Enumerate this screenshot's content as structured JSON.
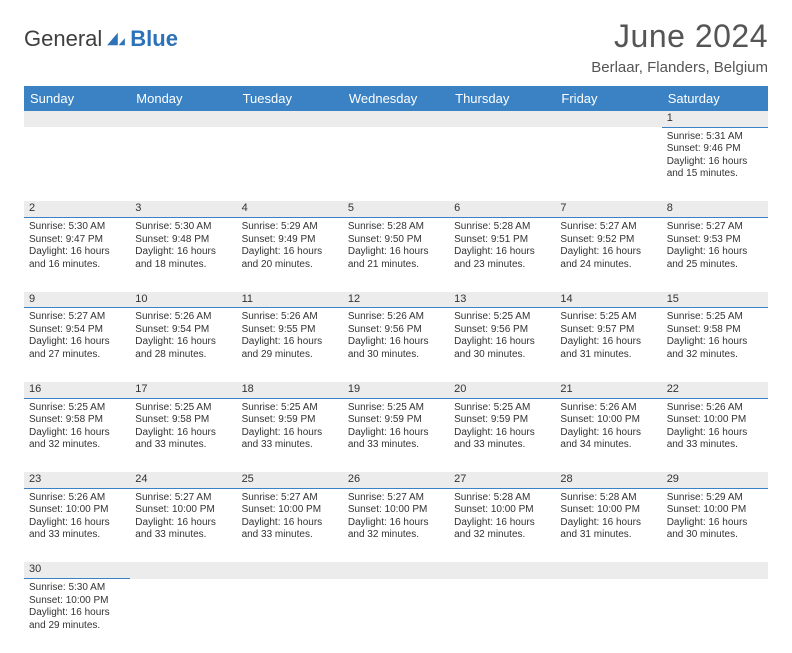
{
  "brand": {
    "part1": "General",
    "part2": "Blue",
    "logo_color": "#2d72b8",
    "text_color": "#3f3f3f"
  },
  "title": {
    "month_year": "June 2024",
    "location": "Berlaar, Flanders, Belgium"
  },
  "colors": {
    "header_bg": "#3a82c4",
    "header_fg": "#ffffff",
    "daynum_bg": "#ececec",
    "rule": "#3a82c4"
  },
  "weekdays": [
    "Sunday",
    "Monday",
    "Tuesday",
    "Wednesday",
    "Thursday",
    "Friday",
    "Saturday"
  ],
  "weeks": [
    [
      null,
      null,
      null,
      null,
      null,
      null,
      {
        "n": "1",
        "sr": "5:31 AM",
        "ss": "9:46 PM",
        "dl": "16 hours and 15 minutes."
      }
    ],
    [
      {
        "n": "2",
        "sr": "5:30 AM",
        "ss": "9:47 PM",
        "dl": "16 hours and 16 minutes."
      },
      {
        "n": "3",
        "sr": "5:30 AM",
        "ss": "9:48 PM",
        "dl": "16 hours and 18 minutes."
      },
      {
        "n": "4",
        "sr": "5:29 AM",
        "ss": "9:49 PM",
        "dl": "16 hours and 20 minutes."
      },
      {
        "n": "5",
        "sr": "5:28 AM",
        "ss": "9:50 PM",
        "dl": "16 hours and 21 minutes."
      },
      {
        "n": "6",
        "sr": "5:28 AM",
        "ss": "9:51 PM",
        "dl": "16 hours and 23 minutes."
      },
      {
        "n": "7",
        "sr": "5:27 AM",
        "ss": "9:52 PM",
        "dl": "16 hours and 24 minutes."
      },
      {
        "n": "8",
        "sr": "5:27 AM",
        "ss": "9:53 PM",
        "dl": "16 hours and 25 minutes."
      }
    ],
    [
      {
        "n": "9",
        "sr": "5:27 AM",
        "ss": "9:54 PM",
        "dl": "16 hours and 27 minutes."
      },
      {
        "n": "10",
        "sr": "5:26 AM",
        "ss": "9:54 PM",
        "dl": "16 hours and 28 minutes."
      },
      {
        "n": "11",
        "sr": "5:26 AM",
        "ss": "9:55 PM",
        "dl": "16 hours and 29 minutes."
      },
      {
        "n": "12",
        "sr": "5:26 AM",
        "ss": "9:56 PM",
        "dl": "16 hours and 30 minutes."
      },
      {
        "n": "13",
        "sr": "5:25 AM",
        "ss": "9:56 PM",
        "dl": "16 hours and 30 minutes."
      },
      {
        "n": "14",
        "sr": "5:25 AM",
        "ss": "9:57 PM",
        "dl": "16 hours and 31 minutes."
      },
      {
        "n": "15",
        "sr": "5:25 AM",
        "ss": "9:58 PM",
        "dl": "16 hours and 32 minutes."
      }
    ],
    [
      {
        "n": "16",
        "sr": "5:25 AM",
        "ss": "9:58 PM",
        "dl": "16 hours and 32 minutes."
      },
      {
        "n": "17",
        "sr": "5:25 AM",
        "ss": "9:58 PM",
        "dl": "16 hours and 33 minutes."
      },
      {
        "n": "18",
        "sr": "5:25 AM",
        "ss": "9:59 PM",
        "dl": "16 hours and 33 minutes."
      },
      {
        "n": "19",
        "sr": "5:25 AM",
        "ss": "9:59 PM",
        "dl": "16 hours and 33 minutes."
      },
      {
        "n": "20",
        "sr": "5:25 AM",
        "ss": "9:59 PM",
        "dl": "16 hours and 33 minutes."
      },
      {
        "n": "21",
        "sr": "5:26 AM",
        "ss": "10:00 PM",
        "dl": "16 hours and 34 minutes."
      },
      {
        "n": "22",
        "sr": "5:26 AM",
        "ss": "10:00 PM",
        "dl": "16 hours and 33 minutes."
      }
    ],
    [
      {
        "n": "23",
        "sr": "5:26 AM",
        "ss": "10:00 PM",
        "dl": "16 hours and 33 minutes."
      },
      {
        "n": "24",
        "sr": "5:27 AM",
        "ss": "10:00 PM",
        "dl": "16 hours and 33 minutes."
      },
      {
        "n": "25",
        "sr": "5:27 AM",
        "ss": "10:00 PM",
        "dl": "16 hours and 33 minutes."
      },
      {
        "n": "26",
        "sr": "5:27 AM",
        "ss": "10:00 PM",
        "dl": "16 hours and 32 minutes."
      },
      {
        "n": "27",
        "sr": "5:28 AM",
        "ss": "10:00 PM",
        "dl": "16 hours and 32 minutes."
      },
      {
        "n": "28",
        "sr": "5:28 AM",
        "ss": "10:00 PM",
        "dl": "16 hours and 31 minutes."
      },
      {
        "n": "29",
        "sr": "5:29 AM",
        "ss": "10:00 PM",
        "dl": "16 hours and 30 minutes."
      }
    ],
    [
      {
        "n": "30",
        "sr": "5:30 AM",
        "ss": "10:00 PM",
        "dl": "16 hours and 29 minutes."
      },
      null,
      null,
      null,
      null,
      null,
      null
    ]
  ],
  "labels": {
    "sunrise": "Sunrise:",
    "sunset": "Sunset:",
    "daylight": "Daylight:"
  }
}
